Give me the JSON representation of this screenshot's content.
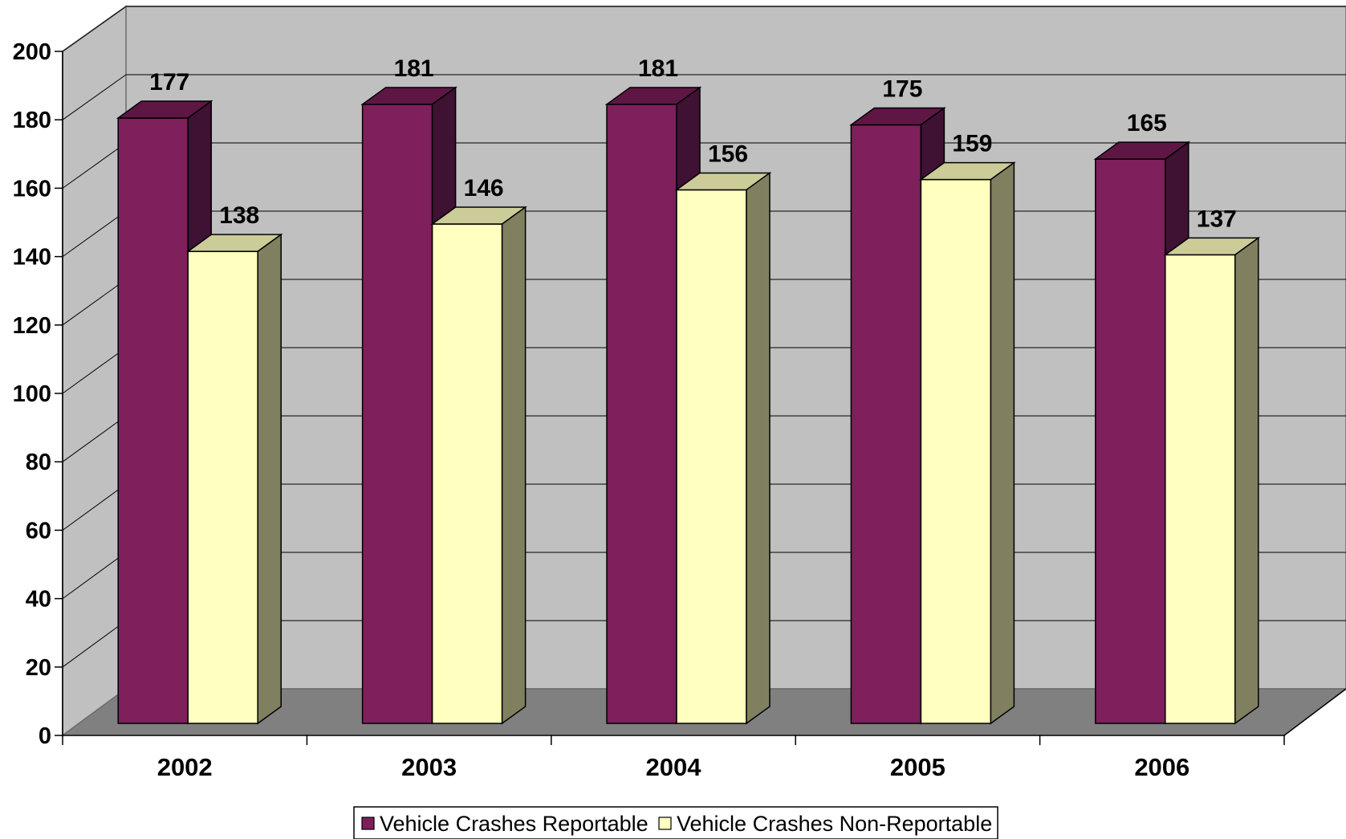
{
  "chart_data": {
    "type": "bar",
    "title": "",
    "xlabel": "",
    "ylabel": "",
    "categories": [
      "2002",
      "2003",
      "2004",
      "2005",
      "2006"
    ],
    "series": [
      {
        "name": "Vehicle Crashes Reportable",
        "values": [
          177,
          181,
          181,
          175,
          165
        ],
        "color": "#7F1F5C",
        "side_color": "#3F1133",
        "top_color": "#5E1745"
      },
      {
        "name": "Vehicle Crashes Non-Reportable",
        "values": [
          138,
          146,
          156,
          159,
          137
        ],
        "color": "#FFFFC0",
        "side_color": "#808060",
        "top_color": "#CCCC99"
      }
    ],
    "ylim": [
      0,
      200
    ],
    "yticks": [
      0,
      20,
      40,
      60,
      80,
      100,
      120,
      140,
      160,
      180,
      200
    ],
    "data_labels": true,
    "grid": true,
    "three_d": true,
    "legend_position": "bottom",
    "colors": {
      "back_wall": "#C0C0C0",
      "side_wall": "#C0C0C0",
      "floor": "#808080",
      "gridline": "#000000"
    }
  }
}
